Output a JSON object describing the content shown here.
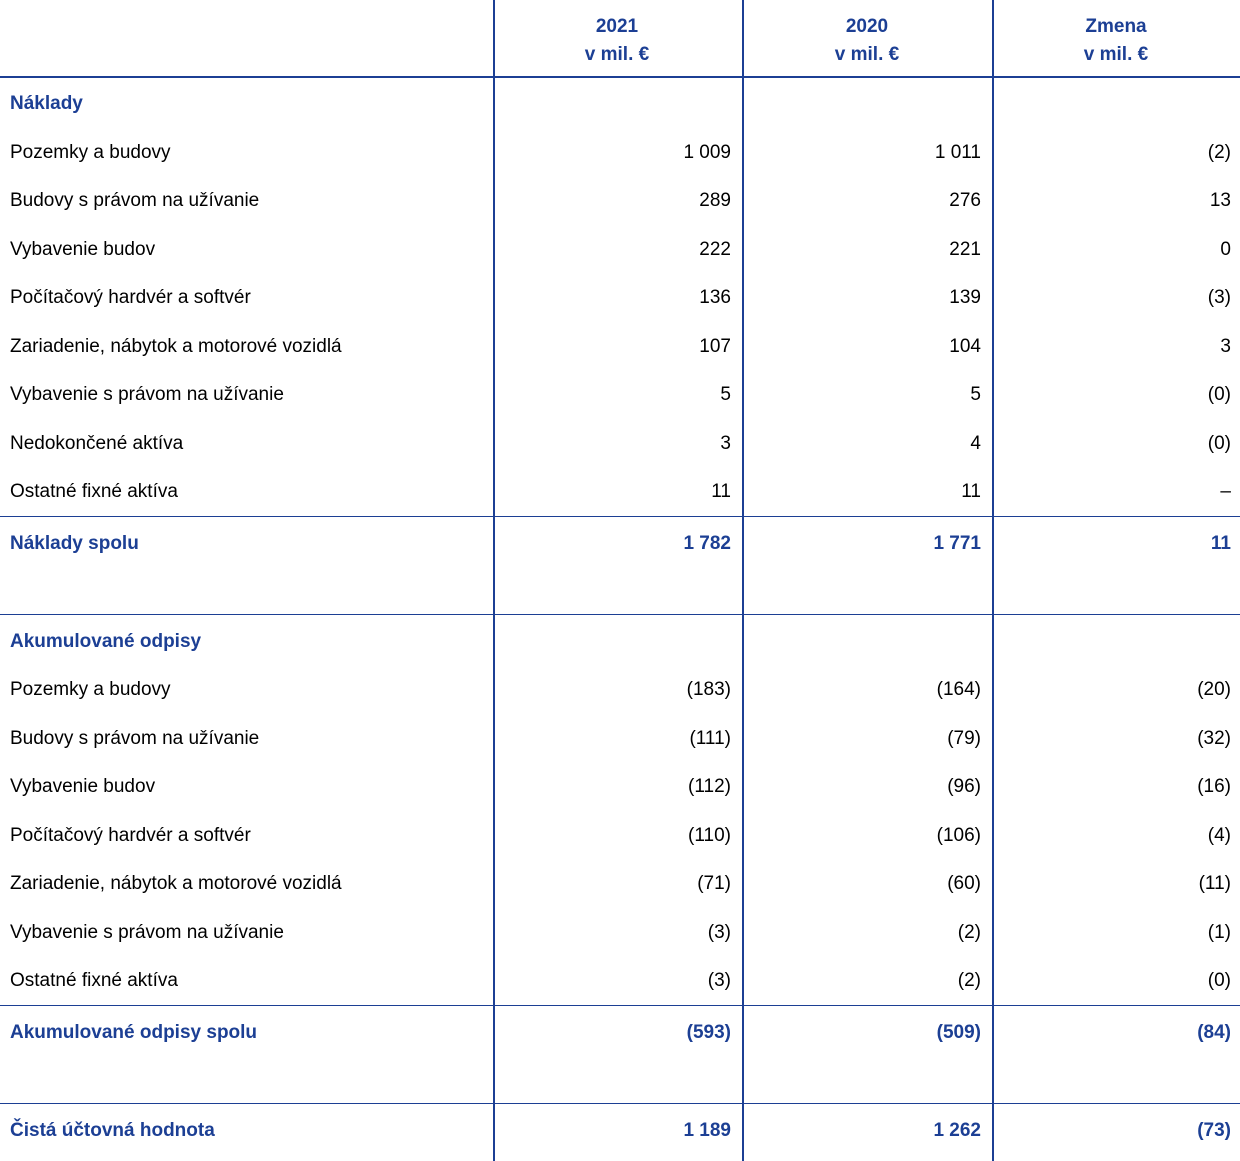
{
  "header": {
    "columns": [
      [
        "2021",
        "v mil. €"
      ],
      [
        "2020",
        "v mil. €"
      ],
      [
        "Zmena",
        "v mil. €"
      ]
    ]
  },
  "sections": [
    {
      "title": "Náklady",
      "rows": [
        [
          "Pozemky a budovy",
          "1 009",
          "1 011",
          "(2)"
        ],
        [
          "Budovy s právom na užívanie",
          "289",
          "276",
          "13"
        ],
        [
          "Vybavenie budov",
          "222",
          "221",
          "0"
        ],
        [
          "Počítačový hardvér a softvér",
          "136",
          "139",
          "(3)"
        ],
        [
          "Zariadenie, nábytok a motorové vozidlá",
          "107",
          "104",
          "3"
        ],
        [
          "Vybavenie s právom na užívanie",
          "5",
          "5",
          "(0)"
        ],
        [
          "Nedokončené aktíva",
          "3",
          "4",
          "(0)"
        ],
        [
          "Ostatné fixné aktíva",
          "11",
          "11",
          "–"
        ]
      ],
      "total": [
        "Náklady spolu",
        "1 782",
        "1 771",
        "11"
      ]
    },
    {
      "title": "Akumulované odpisy",
      "rows": [
        [
          "Pozemky a budovy",
          "(183)",
          "(164)",
          "(20)"
        ],
        [
          "Budovy s právom na užívanie",
          "(111)",
          "(79)",
          "(32)"
        ],
        [
          "Vybavenie budov",
          "(112)",
          "(96)",
          "(16)"
        ],
        [
          "Počítačový hardvér a softvér",
          "(110)",
          "(106)",
          "(4)"
        ],
        [
          "Zariadenie, nábytok a motorové vozidlá",
          "(71)",
          "(60)",
          "(11)"
        ],
        [
          "Vybavenie s právom na užívanie",
          "(3)",
          "(2)",
          "(1)"
        ],
        [
          "Ostatné fixné aktíva",
          "(3)",
          "(2)",
          "(0)"
        ]
      ],
      "total": [
        "Akumulované odpisy spolu",
        "(593)",
        "(509)",
        "(84)"
      ]
    }
  ],
  "net": [
    "Čistá účtovná hodnota",
    "1 189",
    "1 262",
    "(73)"
  ]
}
